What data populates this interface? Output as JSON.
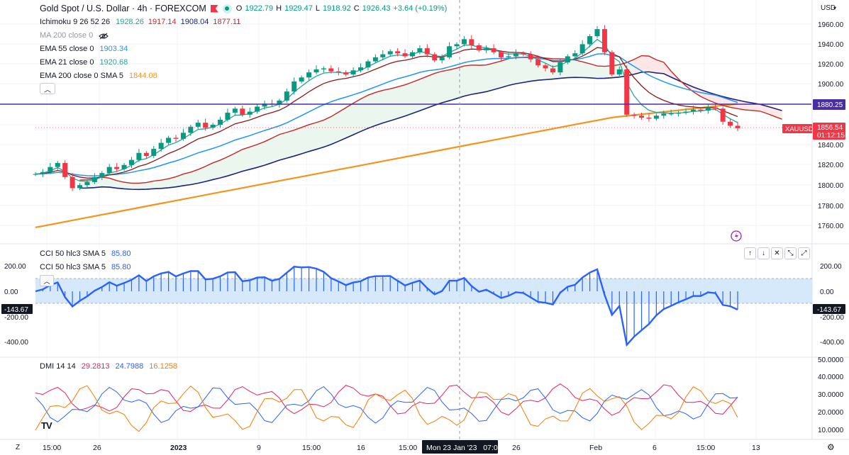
{
  "header": {
    "title": "Gold Spot / U.S. Dollar · 4h · FOREXCOM",
    "ohlc": [
      {
        "k": "O",
        "v": "1922.79"
      },
      {
        "k": "H",
        "v": "1929.47"
      },
      {
        "k": "L",
        "v": "1918.92"
      },
      {
        "k": "C",
        "v": "1926.43"
      },
      {
        "k": "",
        "v": "+3.64 (+0.19%)"
      }
    ]
  },
  "indicators": {
    "ichimoku": {
      "label": "Ichimoku 9 26 52 26",
      "v1": "1928.26",
      "v2": "1917.14",
      "v3": "1908.04",
      "v4": "1877.11"
    },
    "ma200": {
      "label": "MA 200 close 0"
    },
    "ema55": {
      "label": "EMA 55 close 0",
      "value": "1903.34"
    },
    "ema21": {
      "label": "EMA 21 close 0",
      "value": "1920.68"
    },
    "ema200": {
      "label": "EMA 200 close 0 SMA 5",
      "value": "1844.08"
    }
  },
  "cci": {
    "label1": "CCI 50 hlc3 SMA 5",
    "value1": "85.80",
    "label2": "CCI 50 hlc3 SMA 5",
    "value2": "85.80",
    "current": "-143.67",
    "ticks": [
      "200.00",
      "0.00",
      "-200.00",
      "-400.00"
    ]
  },
  "dmi": {
    "label": "DMI 14 14",
    "plus": "29.2813",
    "minus": "24.7988",
    "adx": "16.1258",
    "ticks": [
      "50.0000",
      "40.0000",
      "30.0000",
      "20.0000",
      "10.0000"
    ]
  },
  "price_axis": {
    "currency": "USD",
    "ticks": [
      "1960.00",
      "1940.00",
      "1920.00",
      "1900.00",
      "1840.00",
      "1820.00",
      "1800.00",
      "1780.00",
      "1760.00"
    ],
    "hline_label": "1880.25",
    "last_price": "1856.54",
    "symbol": "XAUUSD",
    "countdown": "01:12:15"
  },
  "time_axis": {
    "labels": [
      "15:00",
      "26",
      "2023",
      "9",
      "15:00",
      "16",
      "15:00",
      "26",
      "Feb",
      "6",
      "15:00",
      "13"
    ],
    "crosshair": "Mon 23 Jan '23   07:00"
  },
  "logo": "TV",
  "chart_data": {
    "type": "candlestick",
    "symbol": "XAUUSD",
    "timeframe": "4h",
    "horizontal_line": 1880.25,
    "last_price": 1856.54,
    "price_range": [
      1750,
      1970
    ],
    "x_range": [
      "2022-12-21",
      "2023-02-09"
    ],
    "colors": {
      "up": "#089981",
      "down": "#f23645",
      "tenkan": "#2e9f8e",
      "kijun": "#b71c1c",
      "spanA": "#f23645",
      "spanB": "#1a237e",
      "ema55": "#2196f3",
      "ema200": "#f7931a",
      "hline": "#4a2ea6",
      "cci": "#2962ff",
      "dmi_plus": "#e91e63",
      "dmi_minus": "#2962ff",
      "adx": "#f57c00"
    },
    "price_series": [
      1811,
      1813,
      1818,
      1822,
      1808,
      1797,
      1800,
      1803,
      1808,
      1812,
      1818,
      1816,
      1820,
      1825,
      1832,
      1829,
      1836,
      1842,
      1847,
      1846,
      1852,
      1858,
      1862,
      1857,
      1860,
      1865,
      1872,
      1876,
      1870,
      1873,
      1878,
      1881,
      1880,
      1884,
      1893,
      1903,
      1907,
      1912,
      1915,
      1916,
      1913,
      1912,
      1910,
      1914,
      1917,
      1923,
      1927,
      1930,
      1933,
      1931,
      1928,
      1932,
      1936,
      1930,
      1924,
      1927,
      1938,
      1940,
      1945,
      1939,
      1934,
      1936,
      1932,
      1927,
      1928,
      1931,
      1930,
      1925,
      1919,
      1916,
      1912,
      1922,
      1928,
      1931,
      1940,
      1948,
      1955,
      1932,
      1910,
      1915,
      1870,
      1869,
      1867,
      1866,
      1869,
      1871,
      1871,
      1872,
      1873,
      1875,
      1874,
      1877,
      1876,
      1863,
      1859,
      1856.54
    ]
  }
}
